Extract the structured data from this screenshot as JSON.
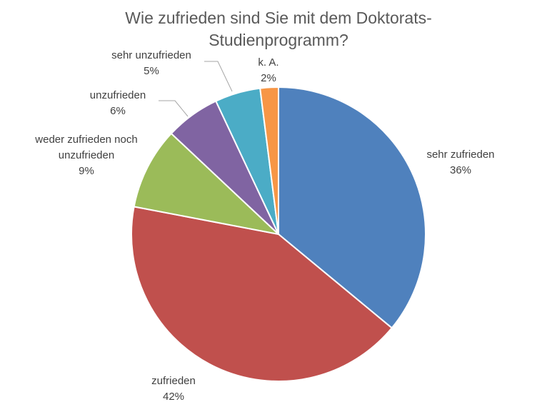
{
  "chart_data": {
    "type": "pie",
    "title": "Wie zufrieden sind Sie mit dem Doktorats-Studienprogramm?",
    "categories": [
      "sehr zufrieden",
      "zufrieden",
      "weder zufrieden noch unzufrieden",
      "unzufrieden",
      "sehr unzufrieden",
      "k. A."
    ],
    "values": [
      36,
      42,
      9,
      6,
      5,
      2
    ],
    "value_labels": [
      "36%",
      "42%",
      "9%",
      "6%",
      "5%",
      "2%"
    ],
    "colors": [
      "#4f81bd",
      "#c0504d",
      "#9bbb59",
      "#8064a2",
      "#4bacc6",
      "#f79646"
    ]
  }
}
